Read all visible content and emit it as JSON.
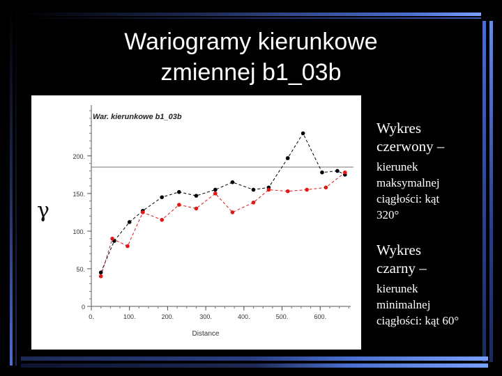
{
  "slide": {
    "title_line1": "Wariogramy kierunkowe",
    "title_line2": "zmiennej b1_03b"
  },
  "captions": {
    "red_heading_1": "Wykres",
    "red_heading_2": "czerwony –",
    "red_body": [
      "kierunek",
      "maksymalnej",
      "ciągłości: kąt",
      "320°"
    ],
    "black_heading_1": "Wykres",
    "black_heading_2": "czarny –",
    "black_body": [
      "kierunek",
      "minimalnej",
      "ciągłości: kąt 60°"
    ]
  },
  "colors": {
    "red_series": "#e01818",
    "black_series": "#000000",
    "stripe_blue": "#4a6fd0",
    "stripe_dark": "#1e2a55"
  },
  "chart_data": {
    "type": "scatter",
    "title": "War. kierunkowe b1_03b",
    "xlabel": "Distance",
    "ylabel": "γ",
    "xlim": [
      0,
      680
    ],
    "ylim": [
      0,
      260
    ],
    "x_ticks": [
      0,
      100,
      200,
      300,
      400,
      500,
      600
    ],
    "x_tick_labels": [
      "0.",
      "100.",
      "200.",
      "300.",
      "400.",
      "500.",
      "600."
    ],
    "y_ticks": [
      0,
      50,
      100,
      150,
      200
    ],
    "y_tick_labels": [
      "0",
      "50.",
      "100.",
      "150.",
      "200."
    ],
    "sill": 185,
    "series": [
      {
        "color": "#e01818",
        "x": [
          25,
          55,
          95,
          135,
          185,
          230,
          275,
          325,
          370,
          425,
          465,
          515,
          565,
          615,
          665
        ],
        "y": [
          40,
          90,
          80,
          125,
          115,
          135,
          130,
          150,
          125,
          138,
          155,
          153,
          155,
          158,
          178
        ]
      },
      {
        "color": "#000000",
        "x": [
          25,
          60,
          100,
          135,
          185,
          230,
          275,
          325,
          370,
          425,
          465,
          515,
          555,
          605,
          645,
          665
        ],
        "y": [
          45,
          87,
          112,
          127,
          145,
          152,
          147,
          155,
          165,
          155,
          158,
          197,
          230,
          178,
          180,
          175
        ]
      }
    ]
  }
}
